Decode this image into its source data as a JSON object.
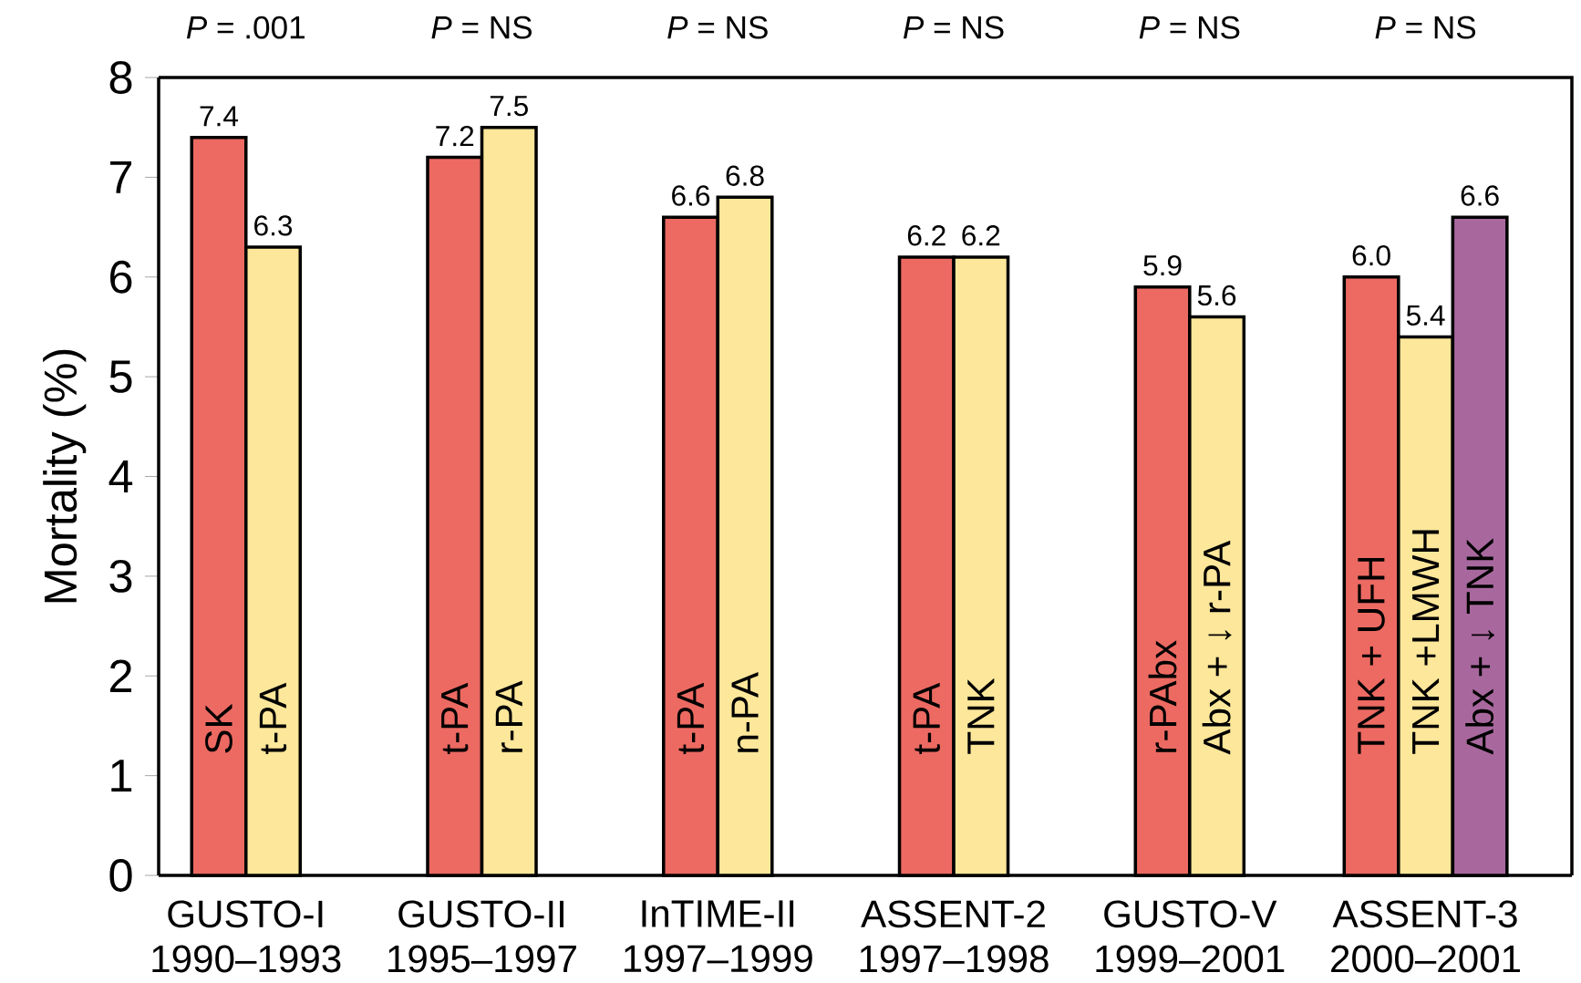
{
  "chart_data": {
    "type": "bar",
    "ylabel": "Mortality (%)",
    "categories": [
      "GUSTO-I 1990–1993",
      "GUSTO-II 1995–1997",
      "InTIME-II 1997–1999",
      "ASSENT-2 1997–1998",
      "GUSTO-V 1999–2001",
      "ASSENT-3 2000–2001"
    ],
    "series": [
      {
        "color": "#ec6a62",
        "values": [
          7.4,
          7.2,
          6.6,
          6.2,
          5.9,
          6.0
        ],
        "value_labels": [
          "7.4",
          "7.2",
          "6.6",
          "6.2",
          "5.9",
          "6.0"
        ]
      },
      {
        "color": "#fde79a",
        "values": [
          6.3,
          7.5,
          6.8,
          6.2,
          5.6,
          5.4
        ],
        "value_labels": [
          "6.3",
          "7.5",
          "6.8",
          "6.2",
          "5.6",
          "5.4"
        ]
      },
      {
        "color": "#a8689e",
        "values": [
          null,
          null,
          null,
          null,
          null,
          6.6
        ],
        "value_labels": [
          null,
          null,
          null,
          null,
          null,
          "6.6"
        ]
      }
    ],
    "ylim": [
      0,
      8
    ],
    "yticks": [
      0,
      1,
      2,
      3,
      4,
      5,
      6,
      7,
      8
    ],
    "annotations": [
      "*P* = .001",
      "*P* = NS",
      "*P* = NS",
      "*P* = NS",
      "*P* = NS",
      "*P* = NS",
      "SK",
      "t-PA",
      "t-PA",
      "r-PA",
      "t-PA",
      "n-PA",
      "t-PA",
      "TNK",
      "r-PAbx",
      "Abx + ↓ r-PA",
      "TNK + UFH",
      "TNK +LMWH",
      "Abx + ↓ TNK"
    ]
  }
}
